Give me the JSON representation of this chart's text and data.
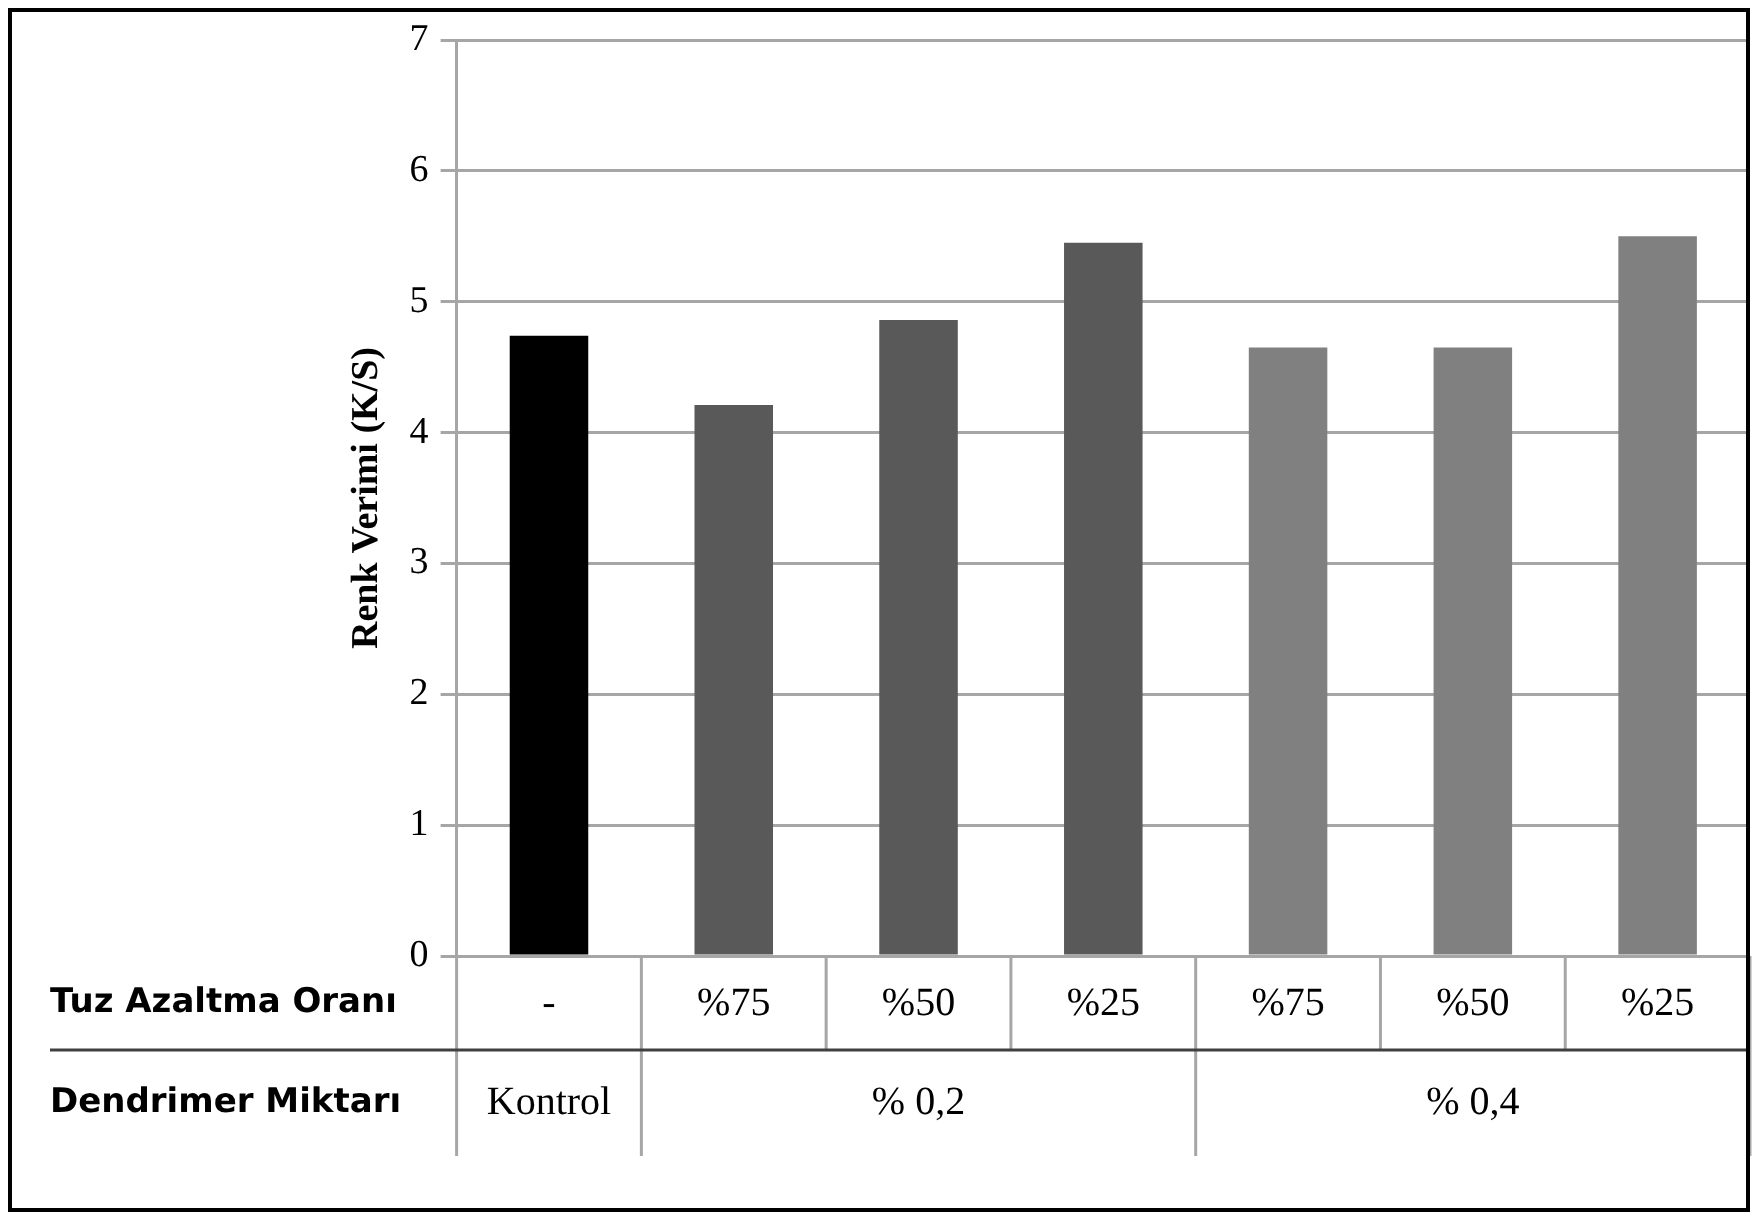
{
  "chart_data": {
    "type": "bar",
    "ylabel": "Renk Verimi (K/S)",
    "categories": [
      "-",
      "%75",
      "%50",
      "%25",
      "%75",
      "%50",
      "%25"
    ],
    "values": [
      4.74,
      4.21,
      4.86,
      5.45,
      4.65,
      4.65,
      5.5
    ],
    "colors": [
      "#000000",
      "#595959",
      "#595959",
      "#595959",
      "#808080",
      "#808080",
      "#808080"
    ],
    "ylim": [
      0,
      7
    ],
    "yticks": [
      0,
      1,
      2,
      3,
      4,
      5,
      6,
      7
    ],
    "grid": "y",
    "legend": false,
    "annotations": [
      "Tuz Azaltma Oranı",
      "Dendrimer Miktarı",
      "Kontrol",
      "% 0,2",
      "% 0,4"
    ]
  }
}
